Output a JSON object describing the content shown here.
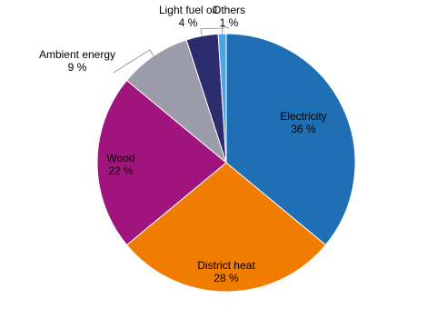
{
  "chart_data": {
    "type": "pie",
    "categories": [
      "Electricity",
      "District heat",
      "Wood",
      "Ambient energy",
      "Light fuel oil",
      "Others"
    ],
    "values": [
      36,
      28,
      22,
      9,
      4,
      1
    ],
    "value_labels": [
      "36 %",
      "28 %",
      "22 %",
      "9 %",
      "4 %",
      "1 %"
    ],
    "colors": [
      "#1f6fb5",
      "#f07c00",
      "#a0157d",
      "#9b9ba9",
      "#2b2c6e",
      "#4ba6e3"
    ]
  }
}
